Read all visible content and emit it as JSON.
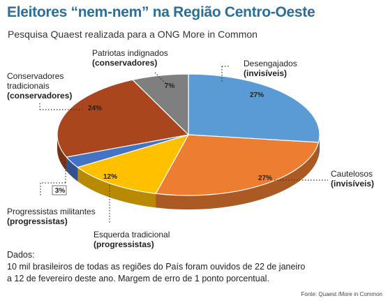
{
  "title": "Eleitores “nem-nem” na Região Centro-Oeste",
  "subtitle": "Pesquisa Quaest realizada para a ONG More in Common",
  "chart_data": {
    "type": "pie",
    "slices": [
      {
        "label_line1": "Desengajados",
        "label_line2": "(invisíveis)",
        "value": 27,
        "value_label": "27%",
        "color": "#5b9bd5"
      },
      {
        "label_line1": "Cautelosos",
        "label_line2": "(invisíveis)",
        "value": 27,
        "value_label": "27%",
        "color": "#ed7d31"
      },
      {
        "label_line1": "Esquerda tradicional",
        "label_line2": "(progressistas)",
        "value": 12,
        "value_label": "12%",
        "color": "#ffc000"
      },
      {
        "label_line1": "Progressistas militantes",
        "label_line2": "(progressistas)",
        "value": 3,
        "value_label": "3%",
        "color": "#4472c4"
      },
      {
        "label_line1": "Conservadores tradicionais",
        "label_line2": "(conservadores)",
        "value": 24,
        "value_label": "24%",
        "color": "#a9461d"
      },
      {
        "label_line1": "Patriotas indignados",
        "label_line2": "(conservadores)",
        "value": 7,
        "value_label": "7%",
        "color": "#7f7f7f"
      }
    ]
  },
  "notes": {
    "heading": "Dados:",
    "line1": "10 mil brasileiros de todas as regiões do País foram ouvidos de 22 de janeiro",
    "line2": "a 12 de fevereiro deste ano. Margem de erro de 1 ponto porcentual."
  },
  "source": "Fonte: Quaest /More in Common"
}
